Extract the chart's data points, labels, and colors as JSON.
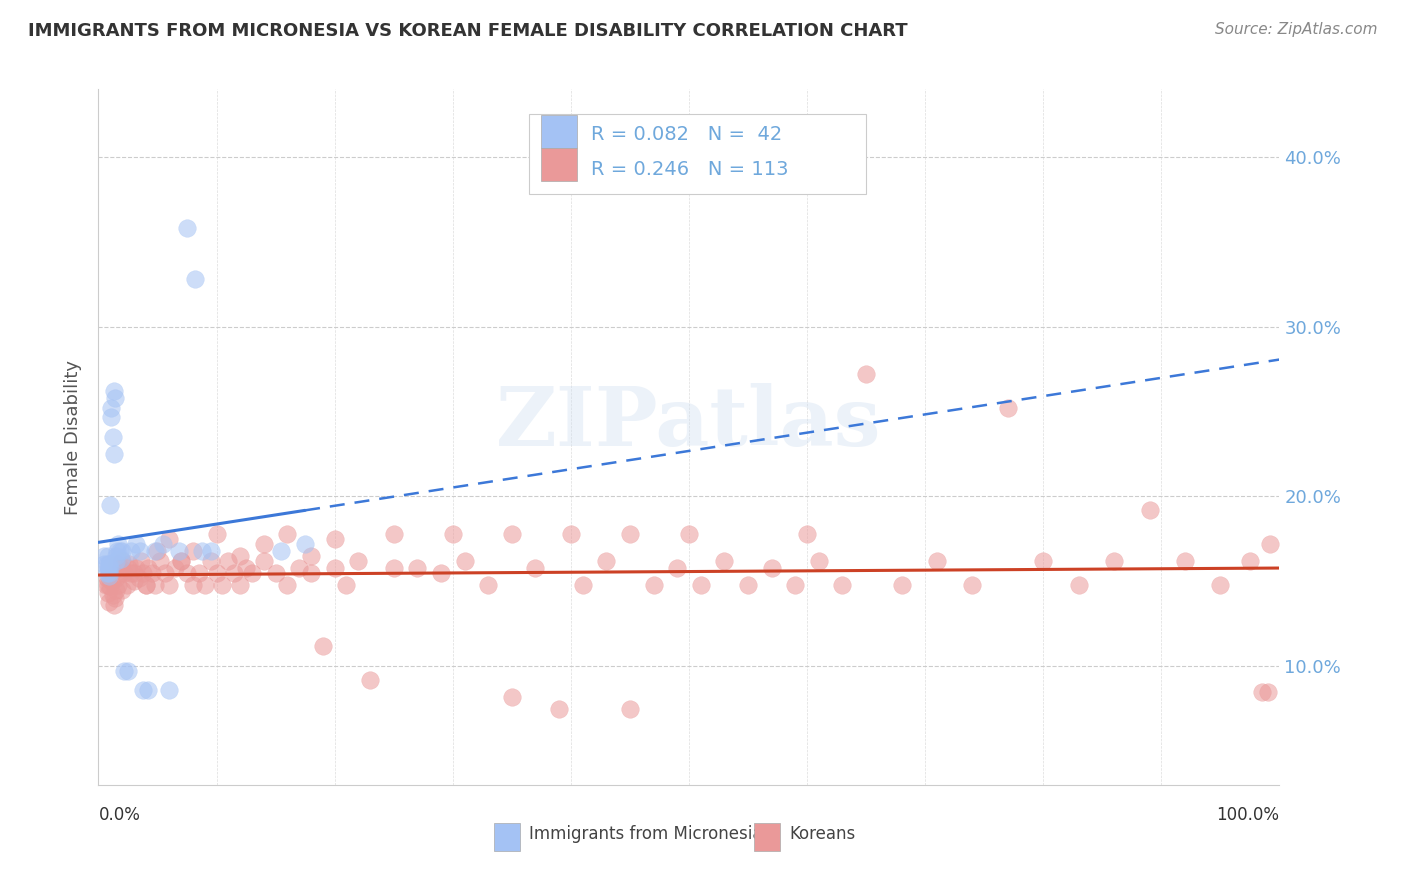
{
  "title": "IMMIGRANTS FROM MICRONESIA VS KOREAN FEMALE DISABILITY CORRELATION CHART",
  "source": "Source: ZipAtlas.com",
  "ylabel": "Female Disability",
  "y_ticks": [
    0.1,
    0.2,
    0.3,
    0.4
  ],
  "y_tick_labels": [
    "10.0%",
    "20.0%",
    "30.0%",
    "40.0%"
  ],
  "xlim": [
    0.0,
    1.0
  ],
  "ylim": [
    0.03,
    0.44
  ],
  "legend_text1": "R = 0.082   N =  42",
  "legend_text2": "R = 0.246   N = 113",
  "color_blue": "#a4c2f4",
  "color_pink": "#ea9999",
  "trend_blue": "#3c78d8",
  "trend_pink": "#cc4125",
  "tick_color": "#6fa8dc",
  "watermark": "ZIPatlas",
  "background_color": "#ffffff",
  "mic_x": [
    0.005,
    0.005,
    0.007,
    0.007,
    0.008,
    0.008,
    0.009,
    0.009,
    0.009,
    0.009,
    0.01,
    0.01,
    0.011,
    0.011,
    0.012,
    0.013,
    0.013,
    0.014,
    0.015,
    0.015,
    0.016,
    0.017,
    0.018,
    0.019,
    0.02,
    0.022,
    0.025,
    0.028,
    0.032,
    0.035,
    0.038,
    0.042,
    0.048,
    0.055,
    0.06,
    0.068,
    0.075,
    0.082,
    0.088,
    0.095,
    0.155,
    0.175
  ],
  "mic_y": [
    0.16,
    0.165,
    0.16,
    0.155,
    0.165,
    0.158,
    0.16,
    0.158,
    0.155,
    0.153,
    0.195,
    0.158,
    0.252,
    0.247,
    0.235,
    0.225,
    0.262,
    0.258,
    0.165,
    0.162,
    0.168,
    0.172,
    0.168,
    0.163,
    0.168,
    0.097,
    0.097,
    0.168,
    0.172,
    0.168,
    0.086,
    0.086,
    0.168,
    0.172,
    0.086,
    0.168,
    0.358,
    0.328,
    0.168,
    0.168,
    0.168,
    0.172
  ],
  "kor_x": [
    0.006,
    0.007,
    0.008,
    0.009,
    0.01,
    0.011,
    0.012,
    0.013,
    0.014,
    0.015,
    0.016,
    0.017,
    0.018,
    0.019,
    0.02,
    0.022,
    0.024,
    0.026,
    0.028,
    0.03,
    0.032,
    0.034,
    0.036,
    0.038,
    0.04,
    0.042,
    0.045,
    0.048,
    0.052,
    0.056,
    0.06,
    0.065,
    0.07,
    0.075,
    0.08,
    0.085,
    0.09,
    0.095,
    0.1,
    0.105,
    0.11,
    0.115,
    0.12,
    0.125,
    0.13,
    0.14,
    0.15,
    0.16,
    0.17,
    0.18,
    0.19,
    0.2,
    0.21,
    0.22,
    0.23,
    0.25,
    0.27,
    0.29,
    0.31,
    0.33,
    0.35,
    0.37,
    0.39,
    0.41,
    0.43,
    0.45,
    0.47,
    0.49,
    0.51,
    0.53,
    0.55,
    0.57,
    0.59,
    0.61,
    0.63,
    0.65,
    0.68,
    0.71,
    0.74,
    0.77,
    0.8,
    0.83,
    0.86,
    0.89,
    0.92,
    0.95,
    0.975,
    0.985,
    0.99,
    0.992,
    0.008,
    0.015,
    0.02,
    0.025,
    0.03,
    0.04,
    0.05,
    0.06,
    0.07,
    0.08,
    0.1,
    0.12,
    0.14,
    0.16,
    0.18,
    0.2,
    0.25,
    0.3,
    0.35,
    0.4,
    0.45,
    0.5,
    0.6
  ],
  "kor_y": [
    0.148,
    0.152,
    0.143,
    0.138,
    0.147,
    0.15,
    0.142,
    0.136,
    0.14,
    0.145,
    0.16,
    0.148,
    0.155,
    0.158,
    0.162,
    0.155,
    0.148,
    0.16,
    0.155,
    0.15,
    0.158,
    0.152,
    0.162,
    0.155,
    0.148,
    0.158,
    0.155,
    0.148,
    0.162,
    0.155,
    0.148,
    0.158,
    0.162,
    0.155,
    0.148,
    0.155,
    0.148,
    0.162,
    0.155,
    0.148,
    0.162,
    0.155,
    0.148,
    0.158,
    0.155,
    0.162,
    0.155,
    0.148,
    0.158,
    0.155,
    0.112,
    0.158,
    0.148,
    0.162,
    0.092,
    0.158,
    0.158,
    0.155,
    0.162,
    0.148,
    0.082,
    0.158,
    0.075,
    0.148,
    0.162,
    0.075,
    0.148,
    0.158,
    0.148,
    0.162,
    0.148,
    0.158,
    0.148,
    0.162,
    0.148,
    0.272,
    0.148,
    0.162,
    0.148,
    0.252,
    0.162,
    0.148,
    0.162,
    0.192,
    0.162,
    0.148,
    0.162,
    0.085,
    0.085,
    0.172,
    0.148,
    0.152,
    0.145,
    0.158,
    0.155,
    0.148,
    0.168,
    0.175,
    0.162,
    0.168,
    0.178,
    0.165,
    0.172,
    0.178,
    0.165,
    0.175,
    0.178,
    0.178,
    0.178,
    0.178,
    0.178,
    0.178,
    0.178
  ]
}
